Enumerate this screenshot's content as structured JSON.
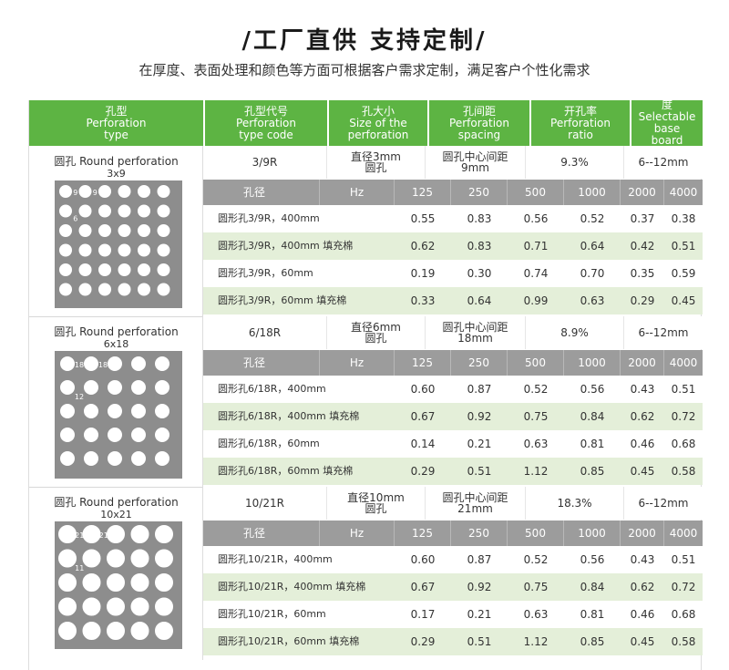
{
  "header": {
    "title": "/工厂直供 支持定制/",
    "subtitle": "在厚度、表面处理和颜色等方面可根据客户需求定制，满足客户个性化需求"
  },
  "columns": [
    {
      "cn": "孔型",
      "en1": "Perforation",
      "en2": "type"
    },
    {
      "cn": "孔型代号",
      "en1": "Perforation",
      "en2": "type code"
    },
    {
      "cn": "孔大小",
      "en1": "Size of the",
      "en2": "perforation"
    },
    {
      "cn": "孔间距",
      "en1": "Perforation",
      "en2": "spacing"
    },
    {
      "cn": "开孔率",
      "en1": "Perforation",
      "en2": "ratio"
    },
    {
      "cn": "可选用基板厚度",
      "en1": "Selectable base",
      "en2": "board thickness"
    }
  ],
  "grid_header": [
    "孔径",
    "Hz",
    "125",
    "250",
    "500",
    "1000",
    "2000",
    "4000"
  ],
  "sections": [
    {
      "label": "圆孔 Round perforation",
      "plate_code": "3x9",
      "dim1": "9",
      "dim2": "9",
      "dim3": "3",
      "dim4": "6",
      "type_code": "3/9R",
      "size_l1": "直径3mm",
      "size_l2": "圆孔",
      "spacing_l1": "圆孔中心间距",
      "spacing_l2": "9mm",
      "ratio": "9.3%",
      "thickness": "6--12mm",
      "rows": [
        {
          "name": "圆形孔3/9R，400mm",
          "v": [
            "0.55",
            "0.83",
            "0.56",
            "0.52",
            "0.37",
            "0.38"
          ]
        },
        {
          "name": "圆形孔3/9R，400mm 填充棉",
          "v": [
            "0.62",
            "0.83",
            "0.71",
            "0.64",
            "0.42",
            "0.51"
          ]
        },
        {
          "name": "圆形孔3/9R，60mm",
          "v": [
            "0.19",
            "0.30",
            "0.74",
            "0.70",
            "0.35",
            "0.59"
          ]
        },
        {
          "name": "圆形孔3/9R，60mm 填充棉",
          "v": [
            "0.33",
            "0.64",
            "0.99",
            "0.63",
            "0.29",
            "0.45"
          ]
        }
      ]
    },
    {
      "label": "圆孔 Round perforation",
      "plate_code": "6x18",
      "dim1": "18",
      "dim2": "18",
      "dim3": "6",
      "dim4": "12",
      "type_code": "6/18R",
      "size_l1": "直径6mm",
      "size_l2": "圆孔",
      "spacing_l1": "圆孔中心间距",
      "spacing_l2": "18mm",
      "ratio": "8.9%",
      "thickness": "6--12mm",
      "rows": [
        {
          "name": "圆形孔6/18R，400mm",
          "v": [
            "0.60",
            "0.87",
            "0.52",
            "0.56",
            "0.43",
            "0.51"
          ]
        },
        {
          "name": "圆形孔6/18R，400mm 填充棉",
          "v": [
            "0.67",
            "0.92",
            "0.75",
            "0.84",
            "0.62",
            "0.72"
          ]
        },
        {
          "name": "圆形孔6/18R，60mm",
          "v": [
            "0.14",
            "0.21",
            "0.63",
            "0.81",
            "0.46",
            "0.68"
          ]
        },
        {
          "name": "圆形孔6/18R，60mm 填充棉",
          "v": [
            "0.29",
            "0.51",
            "1.12",
            "0.85",
            "0.45",
            "0.58"
          ]
        }
      ]
    },
    {
      "label": "圆孔 Round perforation",
      "plate_code": "10x21",
      "dim1": "21",
      "dim2": "21",
      "dim3": "10",
      "dim4": "11",
      "type_code": "10/21R",
      "size_l1": "直径10mm",
      "size_l2": "圆孔",
      "spacing_l1": "圆孔中心间距",
      "spacing_l2": "21mm",
      "ratio": "18.3%",
      "thickness": "6--12mm",
      "rows": [
        {
          "name": "圆形孔10/21R，400mm",
          "v": [
            "0.60",
            "0.87",
            "0.52",
            "0.56",
            "0.43",
            "0.51"
          ]
        },
        {
          "name": "圆形孔10/21R，400mm 填充棉",
          "v": [
            "0.67",
            "0.92",
            "0.75",
            "0.84",
            "0.62",
            "0.72"
          ]
        },
        {
          "name": "圆形孔10/21R，60mm",
          "v": [
            "0.17",
            "0.21",
            "0.63",
            "0.81",
            "0.46",
            "0.68"
          ]
        },
        {
          "name": "圆形孔10/21R，60mm 填充棉",
          "v": [
            "0.29",
            "0.51",
            "1.12",
            "0.85",
            "0.45",
            "0.58"
          ]
        }
      ]
    }
  ],
  "colors": {
    "green": "#5db443",
    "gray_header": "#9c9c9c",
    "alt_row": "#e4efd9",
    "plate": "#8d8d8d"
  }
}
